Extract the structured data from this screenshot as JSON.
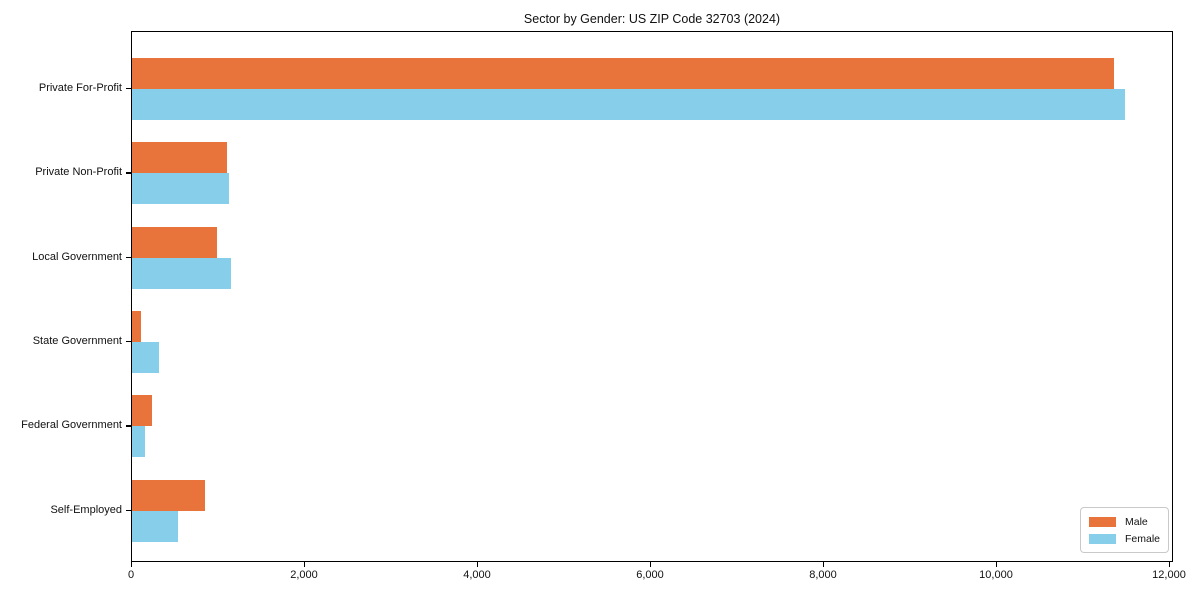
{
  "chart_data": {
    "type": "bar",
    "orientation": "horizontal",
    "title": "Sector by Gender: US ZIP Code 32703 (2024)",
    "categories": [
      "Private For-Profit",
      "Private Non-Profit",
      "Local Government",
      "State Government",
      "Federal Government",
      "Self-Employed"
    ],
    "series": [
      {
        "name": "Male",
        "color": "#E8743C",
        "values": [
          11350,
          1100,
          980,
          100,
          235,
          845
        ]
      },
      {
        "name": "Female",
        "color": "#87CEEB",
        "values": [
          11480,
          1120,
          1140,
          315,
          155,
          530
        ]
      }
    ],
    "xlabel": "",
    "ylabel": "",
    "xlim": [
      0,
      12000
    ],
    "x_ticks": [
      0,
      2000,
      4000,
      6000,
      8000,
      10000,
      12000
    ],
    "x_tick_labels": [
      "0",
      "2,000",
      "4,000",
      "6,000",
      "8,000",
      "10,000",
      "12,000"
    ],
    "grid": false,
    "legend_position": "lower right"
  },
  "legend": {
    "items": [
      {
        "label": "Male",
        "color": "#E8743C"
      },
      {
        "label": "Female",
        "color": "#87CEEB"
      }
    ]
  }
}
